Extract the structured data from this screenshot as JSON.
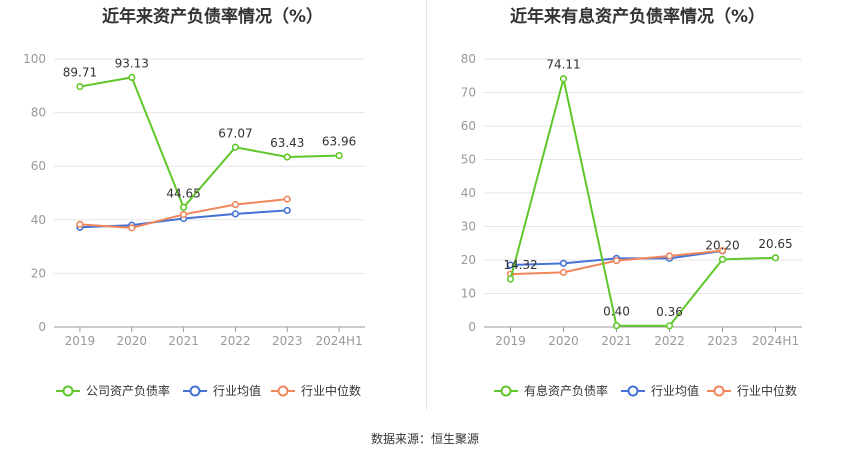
{
  "titles": {
    "left": "近年来资产负债率情况（%）",
    "right": "近年来有息资产负债率情况（%）"
  },
  "source": "数据来源：恒生聚源",
  "colors": {
    "company": "#5fc72a",
    "industry_avg": "#4472d6",
    "industry_median": "#f0875a",
    "grid": "#e6e6e6",
    "axis": "#999999"
  },
  "chart_data": [
    {
      "type": "line",
      "title": "近年来资产负债率情况（%）",
      "categories": [
        "2019",
        "2020",
        "2021",
        "2022",
        "2023",
        "2024H1"
      ],
      "ylim": [
        0,
        100
      ],
      "yticks": [
        0,
        20,
        40,
        60,
        80,
        100
      ],
      "grid": true,
      "legend_position": "bottom",
      "series": [
        {
          "name": "公司资产负债率",
          "color": "#5fc72a",
          "values": [
            89.71,
            93.13,
            44.65,
            67.07,
            63.43,
            63.96
          ],
          "labels": [
            "89.71",
            "93.13",
            "44.65",
            "67.07",
            "63.43",
            "63.96"
          ]
        },
        {
          "name": "行业均值",
          "color": "#4472d6",
          "values": [
            37.2,
            38.0,
            40.5,
            42.2,
            43.5,
            null
          ]
        },
        {
          "name": "行业中位数",
          "color": "#f0875a",
          "values": [
            38.3,
            37.0,
            42.0,
            45.7,
            47.7,
            null
          ]
        }
      ]
    },
    {
      "type": "line",
      "title": "近年来有息资产负债率情况（%）",
      "categories": [
        "2019",
        "2020",
        "2021",
        "2022",
        "2023",
        "2024H1"
      ],
      "ylim": [
        0,
        80
      ],
      "yticks": [
        0,
        10,
        20,
        30,
        40,
        50,
        60,
        70,
        80
      ],
      "grid": true,
      "legend_position": "bottom",
      "series": [
        {
          "name": "有息资产负债率",
          "color": "#5fc72a",
          "values": [
            14.32,
            74.11,
            0.4,
            0.36,
            20.2,
            20.65
          ],
          "labels": [
            "14.32",
            "74.11",
            "0.40",
            "0.36",
            "20.20",
            "20.65"
          ]
        },
        {
          "name": "行业均值",
          "color": "#4472d6",
          "values": [
            18.5,
            19.0,
            20.5,
            20.5,
            22.7,
            null
          ]
        },
        {
          "name": "行业中位数",
          "color": "#f0875a",
          "values": [
            15.8,
            16.3,
            19.8,
            21.2,
            22.8,
            null
          ]
        }
      ]
    }
  ]
}
